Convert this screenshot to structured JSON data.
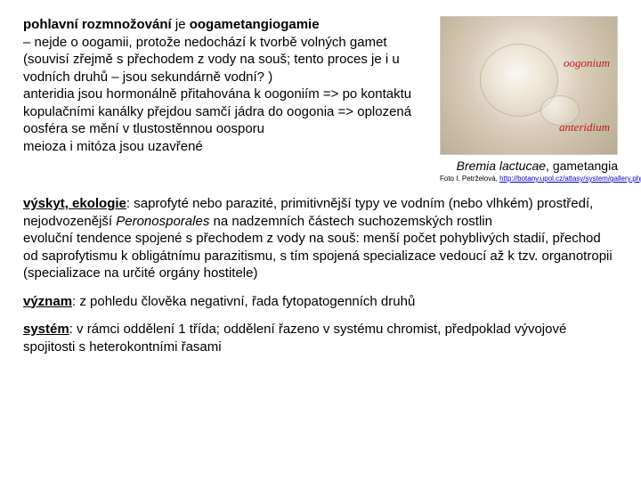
{
  "colors": {
    "background": "#ffffff",
    "text": "#000000",
    "label_red": "#c01818",
    "link": "#0000cc"
  },
  "typography": {
    "body_family": "Arial, sans-serif",
    "body_size_pt": 11,
    "caption_size_pt": 10,
    "credit_size_pt": 6,
    "label_family": "Times New Roman, serif",
    "label_size_pt": 10
  },
  "paragraph1": {
    "lead_bold": "pohlavní rozmnožování",
    "lead_rest": " je ",
    "term_bold": "oogametangiogamie",
    "body": "– nejde o oogamii, protože nedochází k tvorbě volných gamet (souvisí zřejmě s přechodem z vody na souš; tento proces je i u vodních druhů – jsou sekundárně vodní? )\nanteridia jsou hormonálně přitahována k oogoniím => po kontaktu kopulačními kanálky přejdou samčí jádra do oogonia => oplozená oosféra se mění v tlustostěnnou oosporu\nmeioza i mitóza jsou uzavřené"
  },
  "image": {
    "label_oogonium": "oogonium",
    "label_antheridium": "anteridium",
    "caption_species": "Bremia lactucae",
    "caption_rest": ", gametangia",
    "credit_prefix": "Foto I. Petrželová, ",
    "credit_link_text": "http://botany.upol.cz/atlasy/system/gallery.php?entry=oogonium",
    "credit_link_href": "http://botany.upol.cz/atlasy/system/gallery.php?entry=oogonium"
  },
  "paragraph2": {
    "heading": "výskyt, ekologie",
    "lead": ": saprofyté nebo parazité, primitivnější typy ve vodním (nebo vlhkém) prostředí, nejodvozenější ",
    "italic": "Peronosporales",
    "lead2": " na nadzemních částech suchozemských rostlin",
    "body": "evoluční tendence spojené s přechodem z vody na souš: menší počet pohyblivých stadií, přechod od saprofytismu k obligátnímu parazitismu, s tím spojená specializace vedoucí až k tzv. organotropii (specializace na určité orgány hostitele)"
  },
  "paragraph3": {
    "heading": "význam",
    "body": ": z pohledu člověka negativní, řada fytopatogenních druhů"
  },
  "paragraph4": {
    "heading": "systém",
    "body": ": v rámci oddělení 1 třída; oddělení řazeno v systému chromist, předpoklad vývojové spojitosti s heterokontními řasami"
  }
}
